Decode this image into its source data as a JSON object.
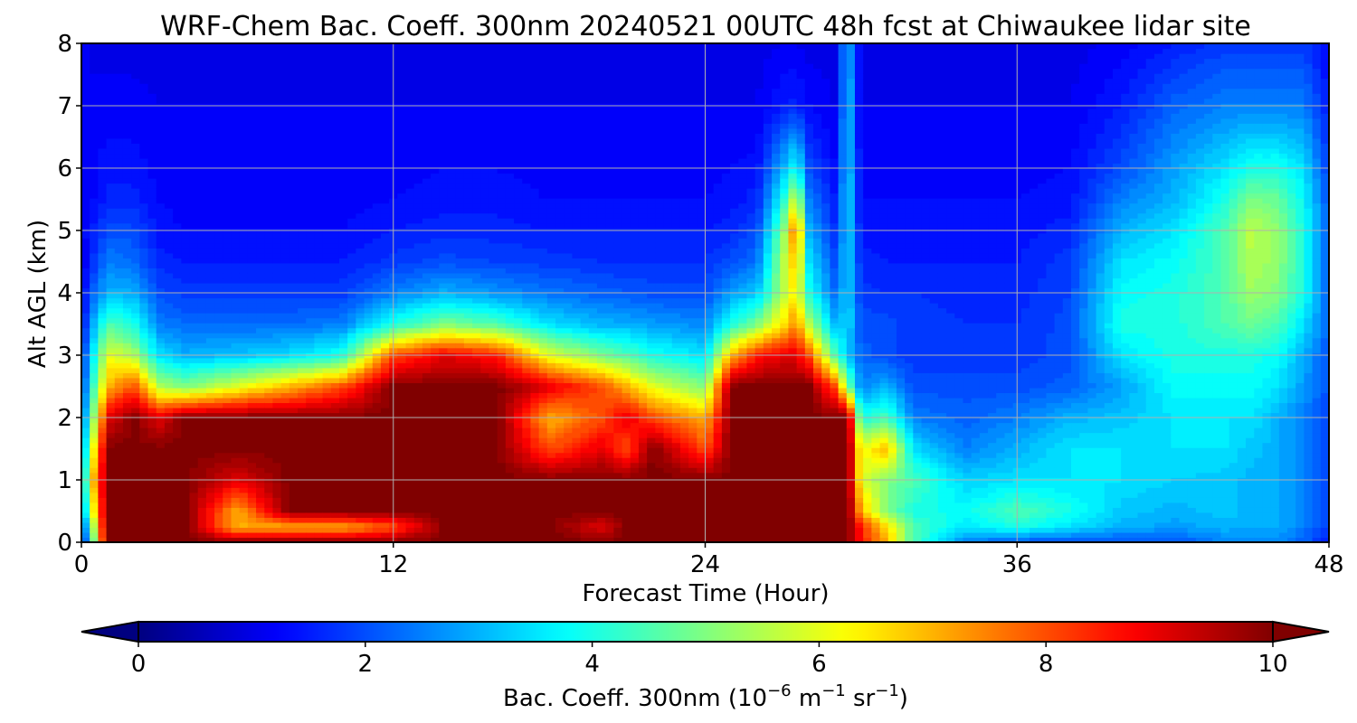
{
  "chart_data": {
    "type": "heatmap",
    "title": "WRF-Chem Bac. Coeff. 300nm  20240521 00UTC 48h fcst at Chiwaukee lidar site",
    "xlabel": "Forecast Time (Hour)",
    "ylabel": "Alt AGL (km)",
    "xlim": [
      0,
      48
    ],
    "ylim": [
      0,
      8
    ],
    "x_ticks": [
      "0",
      "12",
      "24",
      "36",
      "48"
    ],
    "y_ticks": [
      "0",
      "1",
      "2",
      "3",
      "4",
      "5",
      "6",
      "7",
      "8"
    ],
    "grid": true,
    "colormap": "jet",
    "colorbar": {
      "orientation": "horizontal",
      "placement": "bottom",
      "range": [
        0,
        10
      ],
      "extend": "both",
      "ticks": [
        "0",
        "2",
        "4",
        "6",
        "8",
        "10"
      ],
      "label_main": "Bac. Coeff. 300nm  (10",
      "label_exp1": "−6",
      "label_unit1": " m",
      "label_exp2": "−1",
      "label_unit2": " sr",
      "label_exp3": "−1",
      "label_end": ")"
    },
    "x_hours": [
      0,
      0.3,
      1,
      2,
      3,
      4,
      6,
      8,
      10,
      12,
      14,
      16,
      18,
      20,
      21,
      22,
      24,
      25,
      26,
      27,
      27.5,
      28,
      29,
      29.5,
      30,
      31,
      32,
      34,
      36,
      38,
      40,
      42,
      44,
      45,
      46,
      47,
      48
    ],
    "y_km": [
      0,
      0.25,
      0.5,
      1,
      1.5,
      2,
      2.5,
      3,
      3.5,
      4,
      4.5,
      5,
      5.5,
      6,
      7,
      8
    ],
    "values": [
      [
        1.5,
        1.5,
        2.3,
        2.5,
        2.3,
        2.0,
        1.5,
        1.5,
        1.0,
        1.0,
        1.0,
        1.2,
        1.2,
        1.3,
        1.4,
        1.5
      ],
      [
        3.0,
        4.0,
        5.0,
        6.0,
        5.0,
        4.0,
        3.5,
        3.0,
        2.5,
        2.0,
        1.5,
        1.4,
        1.2,
        1.2,
        1.2,
        1.0
      ],
      [
        10,
        10,
        10,
        10,
        10,
        9.0,
        7.0,
        6.0,
        4.5,
        3.0,
        2.5,
        2.0,
        1.6,
        1.4,
        1.2,
        1.0
      ],
      [
        10,
        10,
        10,
        10,
        10,
        10,
        8.0,
        5.5,
        4.0,
        3.0,
        2.3,
        2.0,
        1.6,
        1.4,
        1.2,
        1.0
      ],
      [
        10,
        10,
        10,
        10,
        10,
        9.0,
        5.5,
        3.5,
        2.5,
        2.0,
        1.6,
        1.4,
        1.3,
        1.2,
        1.1,
        1.0
      ],
      [
        10,
        10,
        10,
        10,
        10,
        10,
        5.0,
        3.0,
        2.3,
        1.8,
        1.5,
        1.3,
        1.2,
        1.2,
        1.1,
        1.0
      ],
      [
        10,
        7.0,
        7.0,
        9.0,
        10,
        10,
        6.0,
        3.2,
        2.3,
        1.8,
        1.5,
        1.3,
        1.2,
        1.2,
        1.1,
        1.0
      ],
      [
        10,
        7.0,
        10,
        10,
        10,
        10,
        7.0,
        3.5,
        2.3,
        1.8,
        1.5,
        1.3,
        1.2,
        1.2,
        1.1,
        1.0
      ],
      [
        10,
        7.0,
        10,
        10,
        10,
        10,
        8.0,
        4.0,
        2.5,
        1.8,
        1.5,
        1.3,
        1.2,
        1.2,
        1.1,
        1.0
      ],
      [
        10,
        8.0,
        10,
        10,
        10,
        10,
        10,
        8.0,
        4.0,
        2.5,
        1.8,
        1.5,
        1.3,
        1.2,
        1.1,
        1.0
      ],
      [
        10,
        10,
        10,
        10,
        10,
        10,
        10,
        9.0,
        5.0,
        3.0,
        2.0,
        1.6,
        1.4,
        1.3,
        1.1,
        1.0
      ],
      [
        10,
        10,
        10,
        10,
        10,
        10,
        10,
        8.5,
        4.5,
        2.7,
        1.9,
        1.6,
        1.4,
        1.3,
        1.1,
        1.0
      ],
      [
        10,
        10,
        10,
        10,
        8.0,
        7.0,
        9.0,
        6.0,
        3.5,
        2.4,
        1.8,
        1.5,
        1.3,
        1.2,
        1.1,
        1.0
      ],
      [
        10,
        9.0,
        10,
        10,
        9.0,
        8.0,
        8.0,
        5.0,
        3.0,
        2.2,
        1.7,
        1.5,
        1.3,
        1.2,
        1.1,
        1.0
      ],
      [
        10,
        10,
        10,
        10,
        8.0,
        9.0,
        7.0,
        4.5,
        3.0,
        2.1,
        1.7,
        1.5,
        1.3,
        1.2,
        1.1,
        1.0
      ],
      [
        10,
        10,
        10,
        10,
        10,
        8.0,
        6.0,
        4.0,
        2.8,
        2.0,
        1.7,
        1.5,
        1.3,
        1.2,
        1.1,
        1.0
      ],
      [
        10,
        10,
        10,
        10,
        8.0,
        7.0,
        5.0,
        3.5,
        2.6,
        2.0,
        1.7,
        1.5,
        1.3,
        1.2,
        1.1,
        1.0
      ],
      [
        10,
        10,
        10,
        10,
        10,
        10,
        10,
        7.0,
        4.0,
        2.8,
        2.0,
        1.6,
        1.4,
        1.3,
        1.1,
        1.0
      ],
      [
        10,
        10,
        10,
        10,
        10,
        10,
        10,
        8.5,
        5.0,
        3.2,
        2.4,
        2.0,
        1.6,
        1.4,
        1.1,
        1.0
      ],
      [
        10,
        10,
        10,
        10,
        10,
        10,
        10,
        9.0,
        6.5,
        5.5,
        5.5,
        5.0,
        4.0,
        3.0,
        1.5,
        1.1
      ],
      [
        10,
        10,
        10,
        10,
        10,
        10,
        10,
        9.0,
        7.5,
        6.5,
        7.0,
        8.0,
        6.0,
        4.0,
        1.6,
        1.1
      ],
      [
        10,
        10,
        10,
        10,
        10,
        10,
        10,
        8.0,
        5.5,
        4.0,
        3.5,
        3.0,
        2.5,
        2.0,
        1.3,
        1.0
      ],
      [
        10,
        10,
        10,
        10,
        10,
        10,
        8.0,
        4.5,
        3.0,
        2.3,
        2.0,
        1.7,
        1.5,
        1.3,
        1.1,
        1.0
      ],
      [
        10,
        10,
        10,
        10,
        10,
        10,
        5.0,
        3.2,
        3.4,
        3.4,
        3.4,
        3.4,
        3.4,
        3.3,
        3.2,
        3.0
      ],
      [
        8.5,
        8.5,
        7.0,
        6.0,
        6.0,
        4.0,
        2.5,
        2.2,
        2.0,
        1.8,
        1.6,
        1.4,
        1.3,
        1.2,
        1.1,
        1.0
      ],
      [
        7.0,
        6.5,
        5.0,
        5.0,
        7.0,
        4.5,
        3.0,
        2.0,
        2.0,
        1.7,
        1.5,
        1.4,
        1.3,
        1.2,
        1.1,
        1.0
      ],
      [
        4.5,
        4.5,
        4.0,
        4.5,
        3.5,
        2.5,
        2.0,
        1.8,
        1.8,
        1.7,
        1.5,
        1.4,
        1.3,
        1.2,
        1.1,
        1.0
      ],
      [
        2.5,
        3.5,
        3.8,
        3.3,
        2.5,
        2.2,
        2.0,
        1.8,
        1.7,
        1.6,
        1.5,
        1.4,
        1.3,
        1.2,
        1.1,
        1.0
      ],
      [
        2.0,
        4.0,
        4.5,
        3.5,
        3.0,
        2.5,
        2.0,
        1.8,
        1.7,
        1.6,
        1.5,
        1.4,
        1.3,
        1.2,
        1.1,
        1.0
      ],
      [
        2.0,
        3.5,
        4.0,
        3.5,
        3.5,
        3.0,
        2.2,
        2.0,
        2.0,
        1.9,
        1.8,
        1.6,
        1.4,
        1.3,
        1.1,
        1.0
      ],
      [
        2.0,
        3.0,
        3.2,
        3.5,
        3.5,
        3.2,
        2.8,
        3.5,
        4.0,
        3.8,
        3.5,
        3.0,
        2.5,
        2.0,
        1.5,
        1.2
      ],
      [
        2.0,
        2.8,
        3.0,
        3.3,
        3.5,
        3.5,
        3.8,
        4.0,
        4.0,
        4.0,
        3.8,
        3.5,
        3.0,
        2.8,
        2.2,
        1.5
      ],
      [
        2.5,
        3.0,
        3.2,
        3.2,
        3.5,
        3.5,
        3.8,
        4.0,
        4.5,
        4.5,
        4.5,
        4.5,
        4.0,
        3.5,
        2.5,
        1.8
      ],
      [
        2.5,
        3.0,
        3.0,
        3.0,
        3.2,
        3.5,
        3.8,
        4.0,
        4.8,
        5.3,
        5.5,
        5.6,
        5.0,
        4.0,
        2.5,
        1.8
      ],
      [
        2.5,
        3.0,
        3.0,
        3.0,
        3.0,
        3.0,
        3.5,
        3.8,
        4.5,
        5.0,
        5.2,
        5.2,
        4.8,
        4.0,
        2.5,
        1.8
      ],
      [
        2.2,
        2.5,
        2.5,
        2.5,
        2.5,
        2.5,
        2.8,
        3.0,
        3.5,
        4.0,
        4.0,
        4.0,
        3.8,
        3.5,
        2.5,
        1.8
      ],
      [
        1.5,
        1.8,
        1.8,
        1.8,
        1.8,
        1.8,
        2.0,
        2.0,
        2.2,
        2.2,
        2.2,
        2.2,
        2.0,
        1.8,
        1.5,
        1.2
      ]
    ]
  }
}
